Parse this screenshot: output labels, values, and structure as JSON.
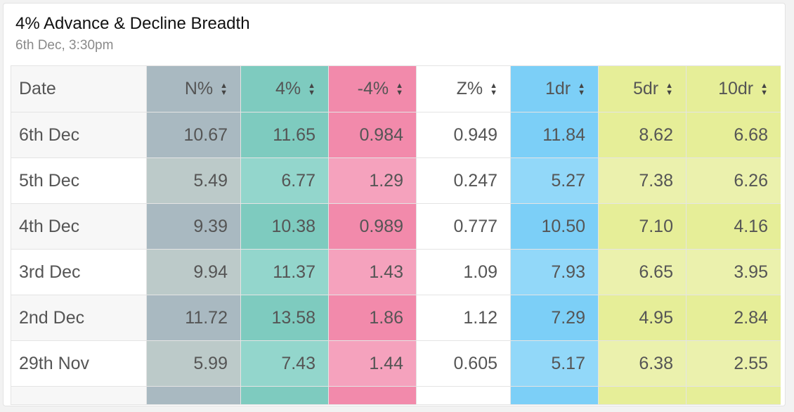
{
  "widget": {
    "title": "4% Advance & Decline Breadth",
    "subtitle": "6th Dec, 3:30pm"
  },
  "table": {
    "columns": [
      {
        "key": "date",
        "label": "Date",
        "sortable": false
      },
      {
        "key": "n",
        "label": "N%",
        "sortable": true,
        "color": "#a9b9c1",
        "color_alt": "#bccac9"
      },
      {
        "key": "p4",
        "label": "4%",
        "sortable": true,
        "color": "#7ecbbf",
        "color_alt": "#93d6cc"
      },
      {
        "key": "m4",
        "label": "-4%",
        "sortable": true,
        "color": "#f28aab",
        "color_alt": "#f5a2bd"
      },
      {
        "key": "z",
        "label": "Z%",
        "sortable": true,
        "color": "#ffffff",
        "color_alt": "#ffffff"
      },
      {
        "key": "dr1",
        "label": "1dr",
        "sortable": true,
        "color": "#7ccff7",
        "color_alt": "#92d8f9"
      },
      {
        "key": "dr5",
        "label": "5dr",
        "sortable": true,
        "color": "#e6ee98",
        "color_alt": "#ebf1ad"
      },
      {
        "key": "dr10",
        "label": "10dr",
        "sortable": true,
        "color": "#e6ee98",
        "color_alt": "#ebf1ad"
      }
    ],
    "rows": [
      {
        "date": "6th Dec",
        "n": "10.67",
        "p4": "11.65",
        "m4": "0.984",
        "z": "0.949",
        "dr1": "11.84",
        "dr5": "8.62",
        "dr10": "6.68"
      },
      {
        "date": "5th Dec",
        "n": "5.49",
        "p4": "6.77",
        "m4": "1.29",
        "z": "0.247",
        "dr1": "5.27",
        "dr5": "7.38",
        "dr10": "6.26"
      },
      {
        "date": "4th Dec",
        "n": "9.39",
        "p4": "10.38",
        "m4": "0.989",
        "z": "0.777",
        "dr1": "10.50",
        "dr5": "7.10",
        "dr10": "4.16"
      },
      {
        "date": "3rd Dec",
        "n": "9.94",
        "p4": "11.37",
        "m4": "1.43",
        "z": "1.09",
        "dr1": "7.93",
        "dr5": "6.65",
        "dr10": "3.95"
      },
      {
        "date": "2nd Dec",
        "n": "11.72",
        "p4": "13.58",
        "m4": "1.86",
        "z": "1.12",
        "dr1": "7.29",
        "dr5": "4.95",
        "dr10": "2.84"
      },
      {
        "date": "29th Nov",
        "n": "5.99",
        "p4": "7.43",
        "m4": "1.44",
        "z": "0.605",
        "dr1": "5.17",
        "dr5": "6.38",
        "dr10": "2.55"
      },
      {
        "date": "",
        "n": "",
        "p4": "",
        "m4": "",
        "z": "",
        "dr1": "",
        "dr5": "",
        "dr10": ""
      }
    ]
  }
}
